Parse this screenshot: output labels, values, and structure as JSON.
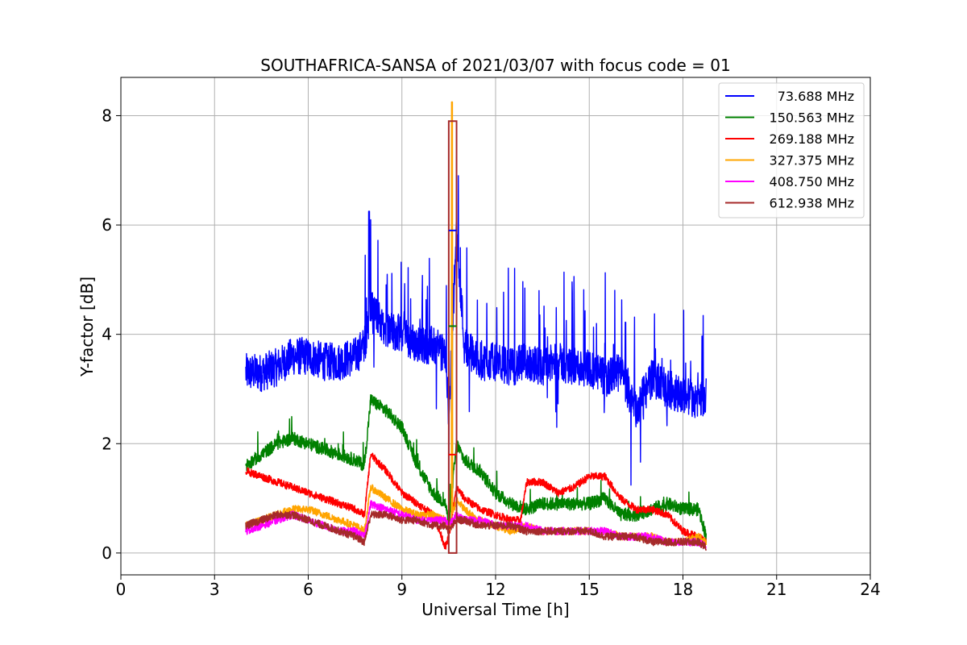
{
  "chart_data": {
    "type": "line",
    "title": "SOUTHAFRICA-SANSA of 2021/03/07 with focus code = 01",
    "xlabel": "Universal Time [h]",
    "ylabel": "Y-factor [dB]",
    "xlim": [
      0,
      24
    ],
    "ylim": [
      -0.4,
      8.7
    ],
    "xticks": [
      0,
      3,
      6,
      9,
      12,
      15,
      18,
      21,
      24
    ],
    "xtick_labels": [
      "0",
      "3",
      "6",
      "9",
      "12",
      "15",
      "18",
      "21",
      "24"
    ],
    "yticks": [
      0,
      2,
      4,
      6,
      8
    ],
    "ytick_labels": [
      "0",
      "2",
      "4",
      "6",
      "8"
    ],
    "grid": true,
    "legend_position": "top-right",
    "series": [
      {
        "name": "73.688 MHz",
        "color": "#0000ff",
        "x": [
          4.0,
          4.5,
          5.0,
          5.5,
          6.0,
          6.5,
          7.0,
          7.5,
          7.8,
          8.0,
          8.5,
          9.0,
          9.5,
          10.0,
          10.4,
          10.5,
          10.75,
          11.0,
          11.5,
          12.0,
          12.5,
          13.0,
          13.5,
          14.0,
          14.5,
          15.0,
          15.5,
          16.0,
          16.5,
          17.0,
          17.5,
          18.0,
          18.5,
          18.75
        ],
        "y": [
          3.3,
          3.3,
          3.4,
          3.6,
          3.6,
          3.5,
          3.5,
          3.6,
          3.8,
          4.5,
          4.1,
          4.0,
          3.8,
          3.8,
          3.6,
          2.5,
          5.9,
          3.8,
          3.5,
          3.5,
          3.4,
          3.5,
          3.4,
          3.5,
          3.4,
          3.4,
          3.2,
          3.3,
          2.6,
          3.2,
          3.0,
          2.9,
          2.8,
          2.9
        ],
        "peak": 6.25,
        "peak_x": 7.95
      },
      {
        "name": "150.563 MHz",
        "color": "#008000",
        "x": [
          4.0,
          4.5,
          5.0,
          5.5,
          6.0,
          6.5,
          7.0,
          7.5,
          7.8,
          8.0,
          8.5,
          9.0,
          9.5,
          10.0,
          10.4,
          10.5,
          10.75,
          11.0,
          11.5,
          12.0,
          12.5,
          13.0,
          13.5,
          14.0,
          14.5,
          15.0,
          15.5,
          16.0,
          16.5,
          17.0,
          17.5,
          18.0,
          18.5,
          18.75
        ],
        "y": [
          1.6,
          1.8,
          2.0,
          2.1,
          2.0,
          1.9,
          1.8,
          1.7,
          1.6,
          2.8,
          2.6,
          2.3,
          1.6,
          1.1,
          0.9,
          0.5,
          2.0,
          1.7,
          1.5,
          1.1,
          0.9,
          0.8,
          0.9,
          0.9,
          0.9,
          0.9,
          1.0,
          0.7,
          0.7,
          0.8,
          0.9,
          0.8,
          0.8,
          0.3
        ]
      },
      {
        "name": "269.188 MHz",
        "color": "#ff0000",
        "x": [
          4.0,
          4.5,
          5.0,
          5.5,
          6.0,
          6.5,
          7.0,
          7.5,
          7.8,
          8.0,
          8.5,
          9.0,
          9.5,
          10.0,
          10.4,
          10.5,
          10.75,
          11.0,
          11.5,
          12.0,
          12.5,
          12.8,
          13.0,
          13.5,
          14.0,
          14.5,
          15.0,
          15.5,
          16.0,
          16.5,
          17.0,
          17.5,
          18.0,
          18.5,
          18.75
        ],
        "y": [
          1.5,
          1.4,
          1.3,
          1.2,
          1.1,
          1.0,
          0.9,
          0.8,
          0.7,
          1.8,
          1.5,
          1.1,
          0.9,
          0.7,
          0.1,
          0.3,
          1.2,
          1.0,
          0.8,
          0.7,
          0.6,
          0.6,
          1.3,
          1.3,
          1.1,
          1.2,
          1.4,
          1.4,
          1.0,
          0.8,
          0.8,
          0.7,
          0.4,
          0.3,
          0.2
        ]
      },
      {
        "name": "327.375 MHz",
        "color": "#ffa500",
        "x": [
          4.0,
          4.5,
          5.0,
          5.5,
          6.0,
          6.5,
          7.0,
          7.5,
          7.8,
          8.0,
          8.5,
          9.0,
          9.5,
          10.0,
          10.4,
          10.5,
          10.75,
          11.0,
          11.5,
          12.0,
          12.5,
          13.0,
          13.5,
          14.0,
          14.5,
          15.0,
          15.5,
          16.0,
          16.5,
          17.0,
          17.5,
          18.0,
          18.5,
          18.75
        ],
        "y": [
          0.5,
          0.6,
          0.7,
          0.8,
          0.8,
          0.7,
          0.6,
          0.5,
          0.4,
          1.2,
          1.0,
          0.8,
          0.7,
          0.7,
          0.6,
          0.4,
          1.0,
          0.8,
          0.6,
          0.5,
          0.4,
          0.5,
          0.4,
          0.4,
          0.4,
          0.4,
          0.4,
          0.3,
          0.3,
          0.3,
          0.2,
          0.2,
          0.3,
          0.2
        ],
        "peak": 8.25,
        "peak_x": 10.6
      },
      {
        "name": "408.750 MHz",
        "color": "#ff00ff",
        "x": [
          4.0,
          4.5,
          5.0,
          5.5,
          6.0,
          6.5,
          7.0,
          7.5,
          7.8,
          8.0,
          8.5,
          9.0,
          9.5,
          10.0,
          10.4,
          10.5,
          10.75,
          11.0,
          11.5,
          12.0,
          12.5,
          13.0,
          13.5,
          14.0,
          14.5,
          15.0,
          15.5,
          16.0,
          16.5,
          17.0,
          17.5,
          18.0,
          18.5,
          18.75
        ],
        "y": [
          0.4,
          0.5,
          0.6,
          0.7,
          0.6,
          0.5,
          0.4,
          0.4,
          0.3,
          0.9,
          0.8,
          0.7,
          0.6,
          0.6,
          0.6,
          0.5,
          0.7,
          0.6,
          0.6,
          0.5,
          0.5,
          0.5,
          0.4,
          0.4,
          0.4,
          0.4,
          0.4,
          0.3,
          0.3,
          0.3,
          0.2,
          0.2,
          0.2,
          0.1
        ]
      },
      {
        "name": "612.938 MHz",
        "color": "#a52a2a",
        "x": [
          4.0,
          4.5,
          5.0,
          5.5,
          6.0,
          6.5,
          7.0,
          7.5,
          7.8,
          8.0,
          8.5,
          9.0,
          9.5,
          10.0,
          10.4,
          10.5,
          10.75,
          11.0,
          11.5,
          12.0,
          12.5,
          13.0,
          13.5,
          14.0,
          14.5,
          15.0,
          15.5,
          16.0,
          16.5,
          17.0,
          17.5,
          18.0,
          18.5,
          18.75
        ],
        "y": [
          0.5,
          0.6,
          0.7,
          0.7,
          0.6,
          0.5,
          0.4,
          0.3,
          0.2,
          0.7,
          0.7,
          0.6,
          0.6,
          0.5,
          0.5,
          0.4,
          0.6,
          0.6,
          0.5,
          0.5,
          0.5,
          0.4,
          0.4,
          0.4,
          0.4,
          0.4,
          0.3,
          0.3,
          0.3,
          0.2,
          0.2,
          0.2,
          0.2,
          0.1
        ]
      }
    ],
    "annotations": [
      {
        "type": "rectangle",
        "x_start": 10.5,
        "x_end": 10.75,
        "y_bottom": 0.0,
        "y_top": 7.9,
        "color": "#a52a2a"
      },
      {
        "type": "hline",
        "x_start": 10.5,
        "x_end": 10.75,
        "y": 5.9,
        "color": "#0000ff"
      },
      {
        "type": "hline",
        "x_start": 10.5,
        "x_end": 10.75,
        "y": 4.15,
        "color": "#008000"
      },
      {
        "type": "hline",
        "x_start": 10.5,
        "x_end": 10.75,
        "y": 1.8,
        "color": "#ff0000"
      }
    ]
  }
}
